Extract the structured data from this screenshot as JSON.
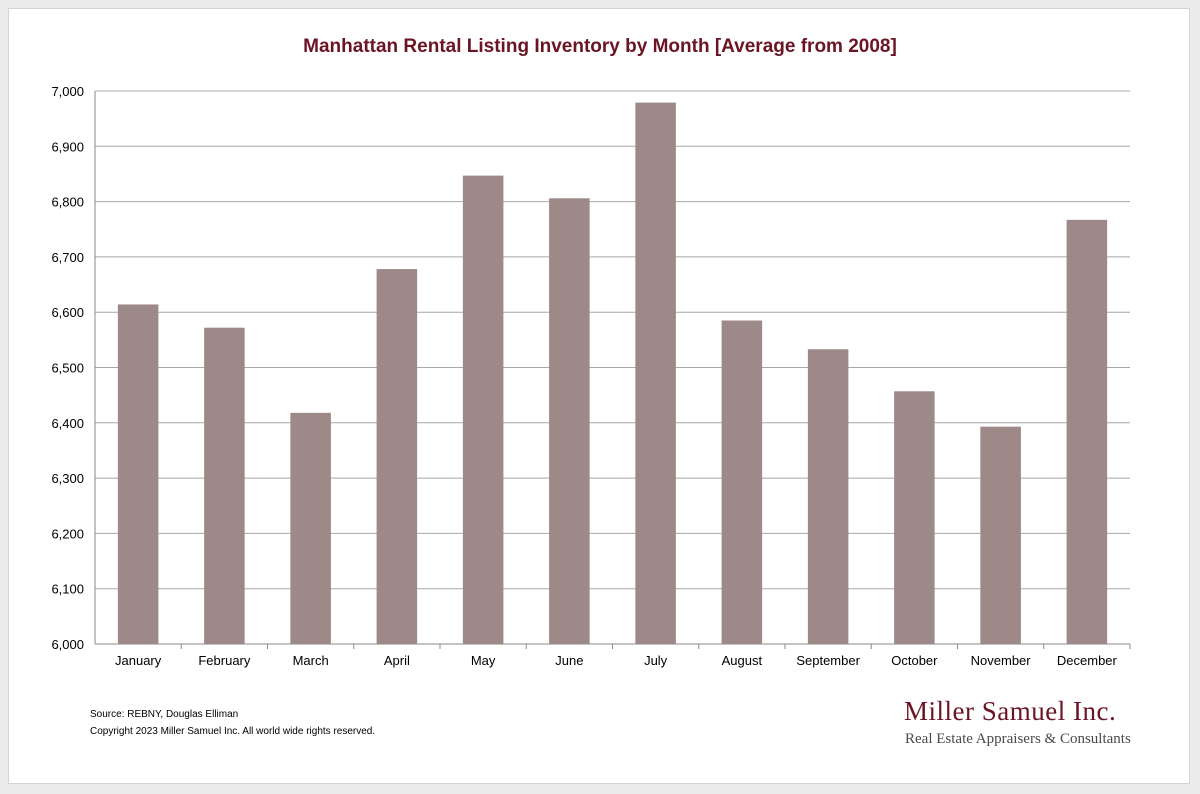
{
  "chart_data": {
    "type": "bar",
    "title": "Manhattan Rental Listing Inventory by Month [Average from 2008]",
    "categories": [
      "January",
      "February",
      "March",
      "April",
      "May",
      "June",
      "July",
      "August",
      "September",
      "October",
      "November",
      "December"
    ],
    "values": [
      6614,
      6572,
      6418,
      6678,
      6847,
      6806,
      6979,
      6585,
      6533,
      6457,
      6393,
      6767
    ],
    "ylim": [
      6000,
      7000
    ],
    "yticks": [
      6000,
      6100,
      6200,
      6300,
      6400,
      6500,
      6600,
      6700,
      6800,
      6900,
      7000
    ],
    "ytick_labels": [
      "6,000",
      "6,100",
      "6,200",
      "6,300",
      "6,400",
      "6,500",
      "6,600",
      "6,700",
      "6,800",
      "6,900",
      "7,000"
    ],
    "grid": true,
    "legend": "none",
    "bar_color": "#9d8987",
    "title_color": "#6b1424"
  },
  "footer": {
    "source": "Source: REBNY, Douglas Elliman",
    "copyright": "Copyright 2023 Miller Samuel Inc.  All world wide rights reserved."
  },
  "logo": {
    "name": "Miller Samuel Inc.",
    "tagline": "Real Estate Appraisers & Consultants"
  }
}
